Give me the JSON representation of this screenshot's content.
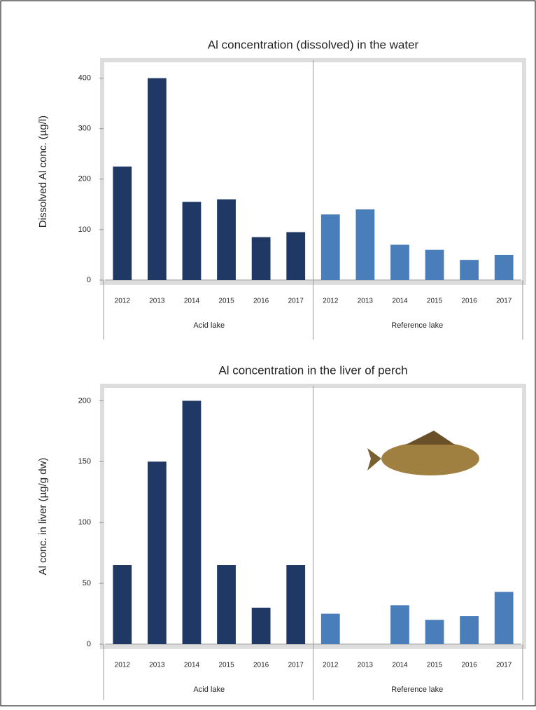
{
  "chart_data": [
    {
      "type": "bar",
      "title": "Al concentration (dissolved) in the water",
      "y_label": "Dissolved Al conc. (µg/l)",
      "categories": [
        "2012",
        "2013",
        "2014",
        "2015",
        "2016",
        "2017"
      ],
      "series": [
        {
          "name": "Acid lake",
          "color": "#1f3864",
          "values": [
            225,
            400,
            155,
            160,
            85,
            95
          ]
        },
        {
          "name": "Reference lake",
          "color": "#4a7ebb",
          "values": [
            130,
            140,
            70,
            60,
            40,
            50
          ]
        }
      ],
      "ylim": [
        0,
        430
      ],
      "yticks": [
        0,
        100,
        200,
        300,
        400
      ]
    },
    {
      "type": "bar",
      "title": "Al concentration in the liver of perch",
      "y_label": "Al conc. in liver (µg/g dw)",
      "categories": [
        "2012",
        "2013",
        "2014",
        "2015",
        "2016",
        "2017"
      ],
      "series": [
        {
          "name": "Acid lake",
          "color": "#1f3864",
          "values": [
            65,
            150,
            200,
            65,
            30,
            65
          ]
        },
        {
          "name": "Reference lake",
          "color": "#4a7ebb",
          "values": [
            25,
            null,
            32,
            20,
            23,
            43
          ]
        }
      ],
      "ylim": [
        0,
        210
      ],
      "yticks": [
        0,
        50,
        100,
        150,
        200
      ]
    }
  ]
}
